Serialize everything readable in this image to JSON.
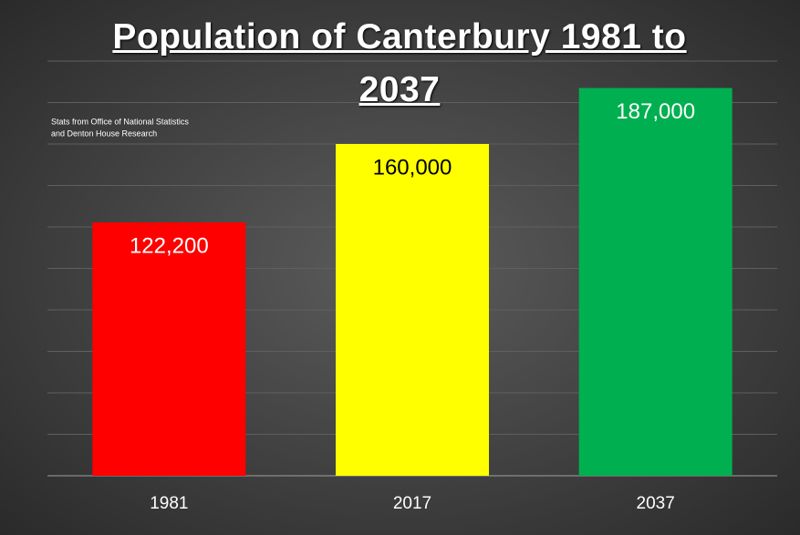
{
  "chart_data": {
    "type": "bar",
    "title": "Population of Canterbury 1981 to 2037",
    "annotation": [
      "Stats from Office of National Statistics",
      "and Denton House Research"
    ],
    "categories": [
      "1981",
      "2017",
      "2037"
    ],
    "values": [
      122200,
      160000,
      187000
    ],
    "value_labels": [
      "122,200",
      "160,000",
      "187,000"
    ],
    "colors": [
      "#ff0000",
      "#ffff00",
      "#00b050"
    ],
    "value_label_colors": [
      "#ffffff",
      "#000000",
      "#ffffff"
    ],
    "ylim": [
      0,
      200000
    ],
    "yticks": [
      0,
      20000,
      40000,
      60000,
      80000,
      100000,
      120000,
      140000,
      160000,
      180000,
      200000
    ],
    "grid": true
  }
}
